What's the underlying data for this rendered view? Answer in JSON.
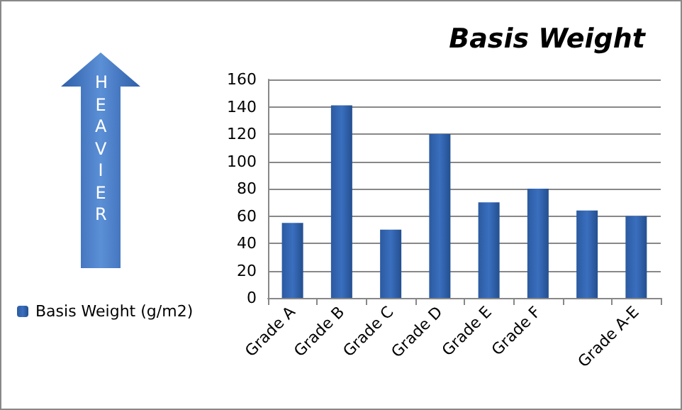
{
  "chart_data": {
    "type": "bar",
    "title": "Basis Weight",
    "categories": [
      "Grade A",
      "Grade B",
      "Grade C",
      "Grade D",
      "Grade E",
      "Grade F",
      null,
      "Grade A-E"
    ],
    "series": [
      {
        "name": "Basis Weight (g/m2)",
        "color": "#3a6fbf",
        "values": [
          55,
          141,
          50,
          120,
          70,
          80,
          64,
          60
        ]
      }
    ],
    "ylim": [
      0,
      160
    ],
    "yticks": [
      0,
      20,
      40,
      60,
      80,
      100,
      120,
      140,
      160
    ],
    "grid": "y",
    "legend": "left",
    "annotations": [
      "HEAVIER"
    ]
  }
}
